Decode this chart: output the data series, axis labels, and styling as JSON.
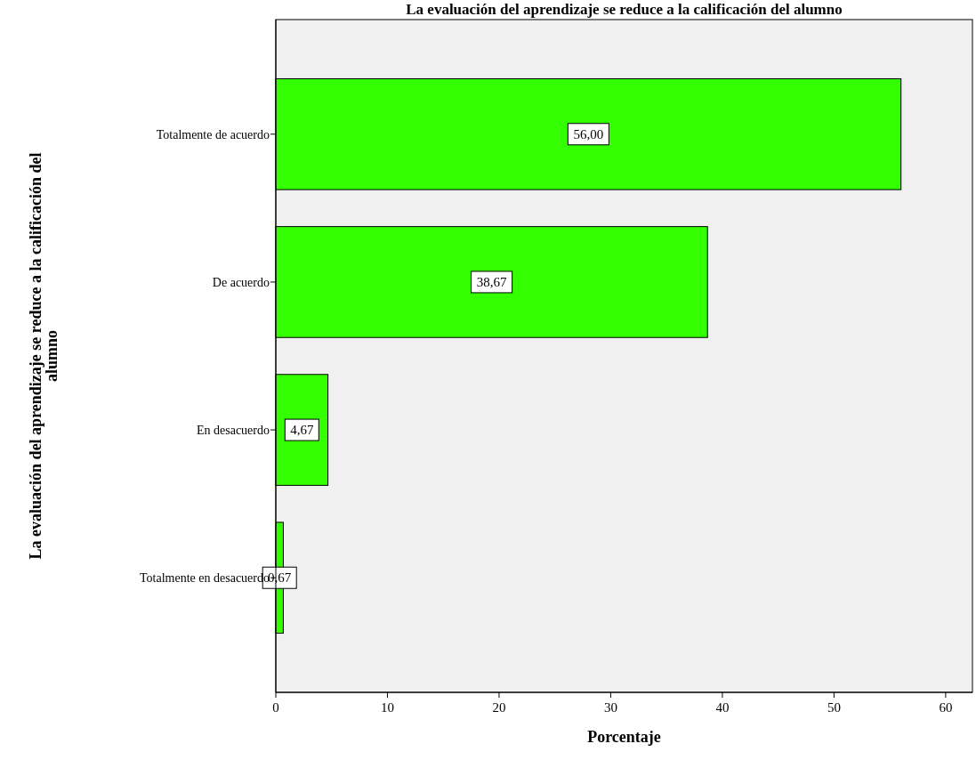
{
  "chart_data": {
    "type": "bar",
    "orientation": "horizontal",
    "title": "La evaluación del aprendizaje se reduce a la calificación del alumno",
    "xlabel": "Porcentaje",
    "ylabel": "La evaluación del aprendizaje se reduce a la calificación del alumno",
    "categories": [
      "Totalmente de acuerdo",
      "De acuerdo",
      "En desacuerdo",
      "Totalmente en desacuerdo"
    ],
    "values": [
      56.0,
      38.67,
      4.67,
      0.67
    ],
    "value_labels": [
      "56,00",
      "38,67",
      "4,67",
      "0,67"
    ],
    "color": "#33ff00",
    "xlim": [
      0,
      62.4
    ],
    "xticks": [
      0,
      10,
      20,
      30,
      40,
      50,
      60
    ],
    "grid": false
  }
}
